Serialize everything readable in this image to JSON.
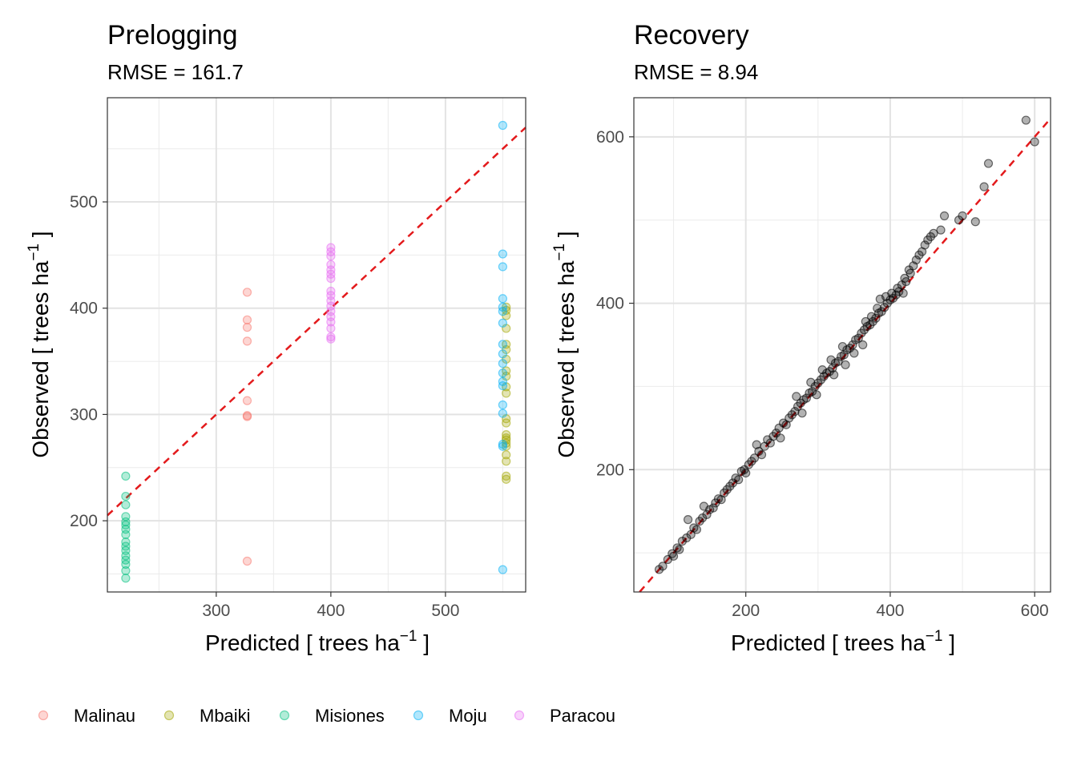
{
  "chart_data": [
    {
      "type": "scatter",
      "title": "Prelogging",
      "subtitle": "RMSE = 161.7",
      "xlabel": "Predicted [ trees ha",
      "ylabel": "Observed [ trees ha",
      "unit_exponent": "−1",
      "unit_close": " ]",
      "xlim": [
        205,
        570
      ],
      "ylim": [
        133,
        598
      ],
      "xticks": [
        300,
        400,
        500
      ],
      "yticks": [
        200,
        300,
        400,
        500
      ],
      "reference_line": "y = x",
      "series": [
        {
          "name": "Malinau",
          "color": "#F8766D",
          "points": [
            [
              327,
              415
            ],
            [
              327,
              389
            ],
            [
              327,
              382
            ],
            [
              327,
              369
            ],
            [
              327,
              313
            ],
            [
              327,
              299
            ],
            [
              327,
              298
            ],
            [
              327,
              162
            ]
          ]
        },
        {
          "name": "Mbaiki",
          "color": "#A3A500",
          "points": [
            [
              553,
              401
            ],
            [
              553,
              398
            ],
            [
              553,
              393
            ],
            [
              553,
              381
            ],
            [
              553,
              366
            ],
            [
              553,
              361
            ],
            [
              553,
              352
            ],
            [
              553,
              341
            ],
            [
              553,
              336
            ],
            [
              553,
              326
            ],
            [
              553,
              320
            ],
            [
              553,
              296
            ],
            [
              553,
              292
            ],
            [
              553,
              281
            ],
            [
              553,
              278
            ],
            [
              553,
              276
            ],
            [
              553,
              273
            ],
            [
              553,
              270
            ],
            [
              553,
              262
            ],
            [
              553,
              256
            ],
            [
              553,
              242
            ],
            [
              553,
              239
            ]
          ]
        },
        {
          "name": "Misiones",
          "color": "#00BF7D",
          "points": [
            [
              221,
              242
            ],
            [
              221,
              223
            ],
            [
              221,
              215
            ],
            [
              221,
              204
            ],
            [
              221,
              199
            ],
            [
              221,
              196
            ],
            [
              221,
              192
            ],
            [
              221,
              187
            ],
            [
              221,
              180
            ],
            [
              221,
              176
            ],
            [
              221,
              172
            ],
            [
              221,
              167
            ],
            [
              221,
              163
            ],
            [
              221,
              159
            ],
            [
              221,
              153
            ],
            [
              221,
              146
            ]
          ]
        },
        {
          "name": "Moju",
          "color": "#00B0F6",
          "points": [
            [
              550,
              572
            ],
            [
              550,
              451
            ],
            [
              550,
              439
            ],
            [
              550,
              409
            ],
            [
              550,
              401
            ],
            [
              550,
              397
            ],
            [
              550,
              386
            ],
            [
              550,
              366
            ],
            [
              550,
              357
            ],
            [
              550,
              348
            ],
            [
              550,
              339
            ],
            [
              550,
              331
            ],
            [
              550,
              327
            ],
            [
              550,
              309
            ],
            [
              550,
              301
            ],
            [
              550,
              272
            ],
            [
              550,
              270
            ],
            [
              550,
              154
            ]
          ]
        },
        {
          "name": "Paracou",
          "color": "#E76BF3",
          "points": [
            [
              400,
              457
            ],
            [
              400,
              453
            ],
            [
              400,
              449
            ],
            [
              400,
              441
            ],
            [
              400,
              436
            ],
            [
              400,
              432
            ],
            [
              400,
              428
            ],
            [
              400,
              416
            ],
            [
              400,
              412
            ],
            [
              400,
              407
            ],
            [
              400,
              402
            ],
            [
              400,
              397
            ],
            [
              400,
              392
            ],
            [
              400,
              387
            ],
            [
              400,
              381
            ],
            [
              400,
              373
            ],
            [
              400,
              371
            ]
          ]
        }
      ]
    },
    {
      "type": "scatter",
      "title": "Recovery",
      "subtitle": "RMSE = 8.94",
      "xlabel": "Predicted [ trees ha",
      "ylabel": "Observed [ trees ha",
      "unit_exponent": "−1",
      "unit_close": " ]",
      "xlim": [
        45,
        622
      ],
      "ylim": [
        53,
        647
      ],
      "xticks": [
        200,
        400,
        600
      ],
      "yticks": [
        200,
        400,
        600
      ],
      "reference_line": "y = x",
      "point_color": "#000000",
      "series": [
        {
          "name": "",
          "points": [
            [
              80,
              80
            ],
            [
              85,
              84
            ],
            [
              92,
              92
            ],
            [
              98,
              99
            ],
            [
              100,
              96
            ],
            [
              105,
              106
            ],
            [
              108,
              104
            ],
            [
              112,
              114
            ],
            [
              118,
              118
            ],
            [
              120,
              140
            ],
            [
              124,
              122
            ],
            [
              128,
              130
            ],
            [
              132,
              128
            ],
            [
              136,
              138
            ],
            [
              140,
              142
            ],
            [
              142,
              156
            ],
            [
              146,
              146
            ],
            [
              150,
              152
            ],
            [
              155,
              154
            ],
            [
              158,
              160
            ],
            [
              162,
              165
            ],
            [
              166,
              164
            ],
            [
              170,
              172
            ],
            [
              174,
              176
            ],
            [
              178,
              180
            ],
            [
              182,
              184
            ],
            [
              186,
              190
            ],
            [
              190,
              188
            ],
            [
              194,
              198
            ],
            [
              198,
              200
            ],
            [
              200,
              196
            ],
            [
              204,
              206
            ],
            [
              208,
              210
            ],
            [
              212,
              214
            ],
            [
              215,
              230
            ],
            [
              218,
              222
            ],
            [
              222,
              218
            ],
            [
              226,
              228
            ],
            [
              230,
              236
            ],
            [
              234,
              232
            ],
            [
              238,
              240
            ],
            [
              242,
              244
            ],
            [
              246,
              250
            ],
            [
              248,
              238
            ],
            [
              252,
              256
            ],
            [
              256,
              254
            ],
            [
              260,
              262
            ],
            [
              264,
              266
            ],
            [
              268,
              270
            ],
            [
              270,
              288
            ],
            [
              272,
              276
            ],
            [
              276,
              280
            ],
            [
              278,
              268
            ],
            [
              280,
              284
            ],
            [
              284,
              286
            ],
            [
              288,
              292
            ],
            [
              290,
              305
            ],
            [
              292,
              294
            ],
            [
              296,
              300
            ],
            [
              298,
              290
            ],
            [
              300,
              304
            ],
            [
              304,
              308
            ],
            [
              306,
              320
            ],
            [
              308,
              312
            ],
            [
              312,
              316
            ],
            [
              316,
              318
            ],
            [
              318,
              332
            ],
            [
              320,
              322
            ],
            [
              322,
              314
            ],
            [
              324,
              328
            ],
            [
              328,
              330
            ],
            [
              332,
              336
            ],
            [
              334,
              348
            ],
            [
              336,
              338
            ],
            [
              338,
              326
            ],
            [
              340,
              344
            ],
            [
              344,
              346
            ],
            [
              348,
              350
            ],
            [
              350,
              340
            ],
            [
              352,
              356
            ],
            [
              356,
              358
            ],
            [
              360,
              364
            ],
            [
              362,
              350
            ],
            [
              364,
              368
            ],
            [
              366,
              378
            ],
            [
              368,
              372
            ],
            [
              372,
              374
            ],
            [
              374,
              384
            ],
            [
              376,
              378
            ],
            [
              380,
              382
            ],
            [
              382,
              394
            ],
            [
              384,
              388
            ],
            [
              386,
              405
            ],
            [
              388,
              390
            ],
            [
              392,
              395
            ],
            [
              394,
              408
            ],
            [
              396,
              400
            ],
            [
              400,
              404
            ],
            [
              402,
              412
            ],
            [
              404,
              406
            ],
            [
              408,
              410
            ],
            [
              410,
              418
            ],
            [
              412,
              414
            ],
            [
              416,
              422
            ],
            [
              418,
              412
            ],
            [
              420,
              430
            ],
            [
              422,
              426
            ],
            [
              426,
              440
            ],
            [
              428,
              436
            ],
            [
              432,
              445
            ],
            [
              436,
              452
            ],
            [
              440,
              458
            ],
            [
              444,
              462
            ],
            [
              448,
              470
            ],
            [
              452,
              476
            ],
            [
              456,
              480
            ],
            [
              460,
              484
            ],
            [
              470,
              488
            ],
            [
              475,
              505
            ],
            [
              495,
              500
            ],
            [
              500,
              505
            ],
            [
              518,
              498
            ],
            [
              530,
              540
            ],
            [
              536,
              568
            ],
            [
              588,
              620
            ],
            [
              600,
              594
            ]
          ]
        }
      ]
    }
  ],
  "legend": {
    "position": "bottom",
    "items": [
      {
        "label": "Malinau",
        "color": "#F8766D"
      },
      {
        "label": "Mbaiki",
        "color": "#A3A500"
      },
      {
        "label": "Misiones",
        "color": "#00BF7D"
      },
      {
        "label": "Moju",
        "color": "#00B0F6"
      },
      {
        "label": "Paracou",
        "color": "#E76BF3"
      }
    ]
  },
  "style": {
    "reference_line_color": "#E31A1C",
    "grid": true,
    "point_opacity": 0.3
  }
}
